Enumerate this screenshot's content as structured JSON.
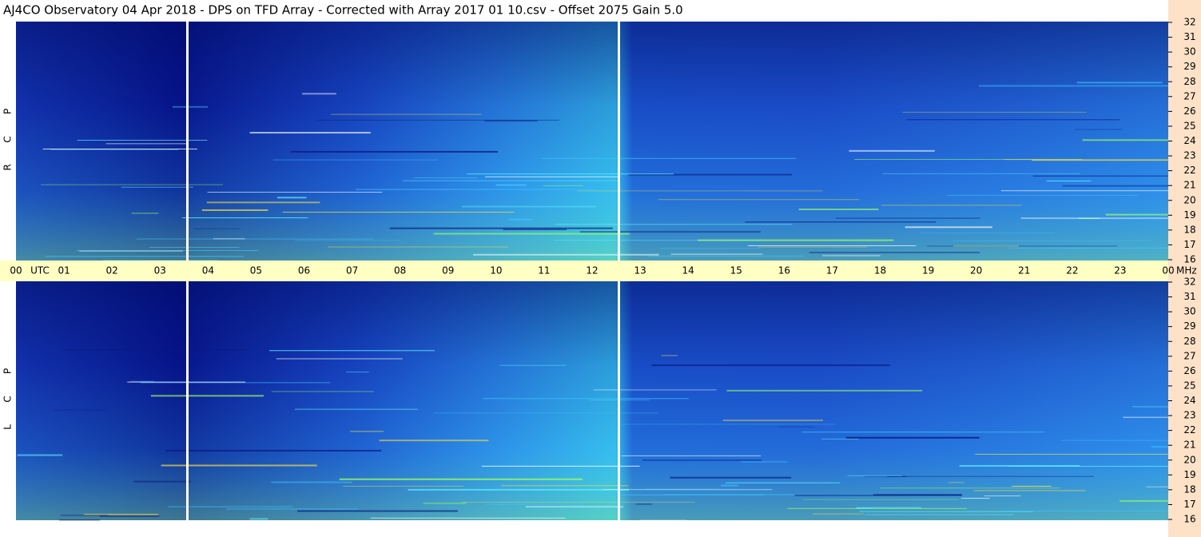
{
  "header": {
    "title": "AJ4CO Observatory  04 Apr 2018  -  DPS on TFD Array  -  Corrected with Array 2017 01 10.csv  -  Offset 2075  Gain 5.0"
  },
  "panels": [
    {
      "letters": [
        "R",
        "C",
        "P"
      ]
    },
    {
      "letters": [
        "L",
        "C",
        "P"
      ]
    }
  ],
  "time_axis": {
    "start": "00",
    "zone": "UTC",
    "hours": [
      "01",
      "02",
      "03",
      "04",
      "05",
      "06",
      "07",
      "08",
      "09",
      "10",
      "11",
      "12",
      "13",
      "14",
      "15",
      "16",
      "17",
      "18",
      "19",
      "20",
      "21",
      "22",
      "23"
    ],
    "end": "00",
    "unit": "MHz"
  },
  "frequency_labels": [
    "32",
    "31",
    "30",
    "29",
    "28",
    "27",
    "26",
    "25",
    "24",
    "23",
    "22",
    "21",
    "20",
    "19",
    "18",
    "17",
    "16"
  ]
}
